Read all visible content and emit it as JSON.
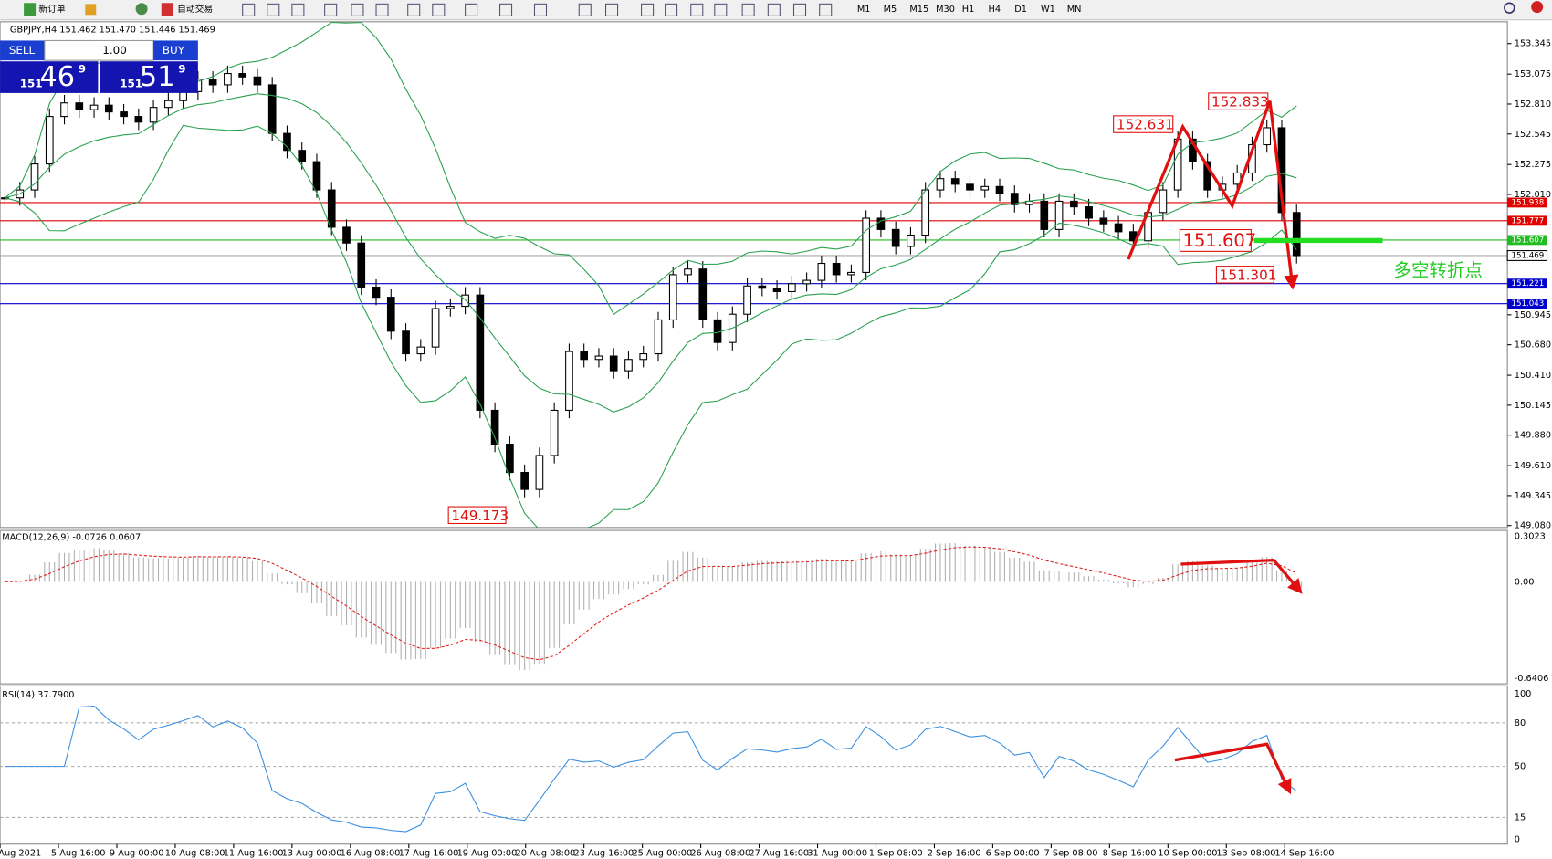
{
  "toolbar": {
    "new_order": "新订单",
    "auto_trading": "自动交易",
    "periods": [
      "M1",
      "M5",
      "M15",
      "M30",
      "H1",
      "H4",
      "D1",
      "W1",
      "MN"
    ]
  },
  "header": "GBPJPY,H4 151.462 151.470 151.446 151.469",
  "one_click": {
    "sell": "SELL",
    "lot": "1.00",
    "buy": "BUY",
    "bid": {
      "prefix": "151",
      "big": "46",
      "sup": "9"
    },
    "ask": {
      "prefix": "151",
      "big": "51",
      "sup": "9"
    }
  },
  "price_chart": {
    "ylim": [
      149.063,
      153.538
    ],
    "yticks": [
      153.345,
      153.075,
      {
        "value": 152.81,
        "label": "152.810"
      },
      152.545,
      152.275,
      {
        "value": 152.01,
        "label": "152.010"
      },
      150.945,
      {
        "value": 150.68,
        "label": "150.680"
      },
      {
        "value": 150.41,
        "label": "150.410"
      },
      150.145,
      {
        "value": 149.88,
        "label": "149.880"
      },
      {
        "value": 149.61,
        "label": "149.610"
      },
      149.345,
      {
        "value": 149.08,
        "label": "149.080"
      }
    ],
    "levels": [
      {
        "value": 151.938,
        "color": "#e00000"
      },
      {
        "value": 151.777,
        "color": "#e00000"
      },
      {
        "value": 151.607,
        "color": "#22bb22"
      },
      {
        "value": 151.469,
        "color": "#aaaaaa"
      },
      {
        "value": 151.221,
        "color": "#0000cc"
      },
      {
        "value": 151.043,
        "color": "#0000cc"
      }
    ],
    "closes": [
      151.98,
      152.05,
      152.28,
      152.7,
      152.82,
      152.76,
      152.8,
      152.74,
      152.7,
      152.65,
      152.78,
      152.84,
      152.92,
      153.03,
      152.98,
      153.08,
      153.05,
      152.98,
      152.55,
      152.4,
      152.3,
      152.05,
      151.72,
      151.58,
      151.19,
      151.1,
      150.8,
      150.6,
      150.66,
      151.0,
      151.02,
      151.12,
      150.1,
      149.8,
      149.55,
      149.4,
      149.7,
      150.1,
      150.62,
      150.55,
      150.58,
      150.45,
      150.55,
      150.6,
      150.9,
      151.3,
      151.35,
      150.9,
      150.7,
      150.95,
      151.2,
      151.18,
      151.15,
      151.22,
      151.25,
      151.4,
      151.3,
      151.32,
      151.8,
      151.7,
      151.55,
      151.65,
      152.05,
      152.15,
      152.1,
      152.05,
      152.08,
      152.02,
      151.92,
      151.95,
      151.7,
      151.95,
      151.9,
      151.8,
      151.75,
      151.68,
      151.6,
      151.85,
      152.05,
      152.5,
      152.3,
      152.05,
      152.1,
      152.2,
      152.45,
      152.6,
      151.85,
      151.469
    ],
    "annotations": [
      "152.631",
      "152.833",
      "151.607",
      "151.301",
      "149.173",
      "多空转折点"
    ]
  },
  "macd": {
    "label": "MACD(12,26,9) -0.0726 0.0607",
    "ylim": [
      -0.67,
      0.335
    ],
    "yticks": [
      0.3023,
      {
        "value": 0,
        "label": "0.00"
      },
      -0.6406
    ]
  },
  "rsi": {
    "label": "RSI(14) 37.7900",
    "ylim": [
      -2.7,
      105.4
    ],
    "yticks": [
      100,
      80,
      50,
      15,
      0
    ]
  },
  "time_axis": [
    "Aug 2021",
    "5 Aug 16:00",
    "9 Aug 00:00",
    "10 Aug 08:00",
    "11 Aug 16:00",
    "13 Aug 00:00",
    "16 Aug 08:00",
    "17 Aug 16:00",
    "19 Aug 00:00",
    "20 Aug 08:00",
    "23 Aug 16:00",
    "25 Aug 00:00",
    "26 Aug 08:00",
    "27 Aug 16:00",
    "31 Aug 00:00",
    "1 Sep 08:00",
    "2 Sep 16:00",
    "6 Sep 00:00",
    "7 Sep 08:00",
    "8 Sep 16:00",
    "10 Sep 00:00",
    "13 Sep 08:00",
    "14 Sep 16:00"
  ]
}
